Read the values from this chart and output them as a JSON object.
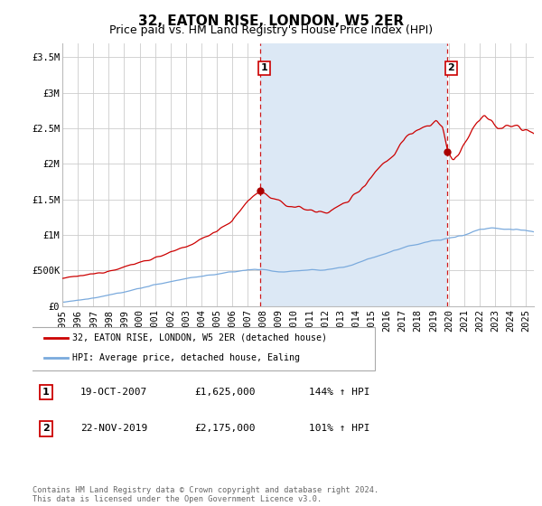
{
  "title": "32, EATON RISE, LONDON, W5 2ER",
  "subtitle": "Price paid vs. HM Land Registry's House Price Index (HPI)",
  "ylabel_ticks": [
    "£0",
    "£500K",
    "£1M",
    "£1.5M",
    "£2M",
    "£2.5M",
    "£3M",
    "£3.5M"
  ],
  "ylabel_values": [
    0,
    500000,
    1000000,
    1500000,
    2000000,
    2500000,
    3000000,
    3500000
  ],
  "ylim": [
    0,
    3700000
  ],
  "xlim_start": 1995.0,
  "xlim_end": 2025.5,
  "xticks": [
    1995,
    1996,
    1997,
    1998,
    1999,
    2000,
    2001,
    2002,
    2003,
    2004,
    2005,
    2006,
    2007,
    2008,
    2009,
    2010,
    2011,
    2012,
    2013,
    2014,
    2015,
    2016,
    2017,
    2018,
    2019,
    2020,
    2021,
    2022,
    2023,
    2024,
    2025
  ],
  "sale1_x": 2007.8,
  "sale1_y": 1625000,
  "sale1_label": "1",
  "sale1_date": "19-OCT-2007",
  "sale1_price": "£1,625,000",
  "sale1_hpi": "144% ↑ HPI",
  "sale2_x": 2019.9,
  "sale2_y": 2175000,
  "sale2_label": "2",
  "sale2_date": "22-NOV-2019",
  "sale2_price": "£2,175,000",
  "sale2_hpi": "101% ↑ HPI",
  "red_line_color": "#cc0000",
  "blue_line_color": "#7aaadd",
  "shade_color": "#dce8f5",
  "dashed_line_color": "#cc0000",
  "marker_color": "#aa0000",
  "background_color": "#ffffff",
  "grid_color": "#cccccc",
  "legend_label_red": "32, EATON RISE, LONDON, W5 2ER (detached house)",
  "legend_label_blue": "HPI: Average price, detached house, Ealing",
  "footer": "Contains HM Land Registry data © Crown copyright and database right 2024.\nThis data is licensed under the Open Government Licence v3.0.",
  "title_fontsize": 11,
  "subtitle_fontsize": 9,
  "tick_fontsize": 7.5
}
